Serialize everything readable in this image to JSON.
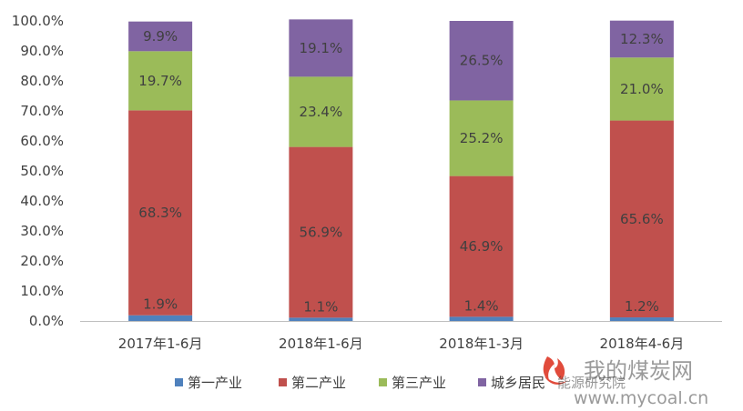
{
  "chart_data": {
    "type": "bar",
    "stacked": true,
    "categories": [
      "2017年1-6月",
      "2018年1-6月",
      "2018年1-3月",
      "2018年4-6月"
    ],
    "series": [
      {
        "name": "第一产业",
        "color": "#4f81bd",
        "values": [
          1.9,
          1.1,
          1.4,
          1.2
        ],
        "labels": [
          "1.9%",
          "1.1%",
          "1.4%",
          "1.2%"
        ]
      },
      {
        "name": "第二产业",
        "color": "#c0504d",
        "values": [
          68.3,
          56.9,
          46.9,
          65.6
        ],
        "labels": [
          "68.3%",
          "56.9%",
          "46.9%",
          "65.6%"
        ]
      },
      {
        "name": "第三产业",
        "color": "#9bbb59",
        "values": [
          19.7,
          23.4,
          25.2,
          21.0
        ],
        "labels": [
          "19.7%",
          "23.4%",
          "25.2%",
          "21.0%"
        ]
      },
      {
        "name": "城乡居民",
        "color": "#8064a2",
        "values": [
          9.9,
          19.1,
          26.5,
          12.3
        ],
        "labels": [
          "9.9%",
          "19.1%",
          "26.5%",
          "12.3%"
        ]
      }
    ],
    "y_ticks": [
      "0.0%",
      "10.0%",
      "20.0%",
      "30.0%",
      "40.0%",
      "50.0%",
      "60.0%",
      "70.0%",
      "80.0%",
      "90.0%",
      "100.0%"
    ],
    "ylim": [
      0,
      100
    ],
    "grid": false,
    "legend_position": "bottom"
  },
  "watermark": {
    "title": "我的煤炭网",
    "url": "www.mycoal.cn",
    "overlay": "能源研究院"
  }
}
